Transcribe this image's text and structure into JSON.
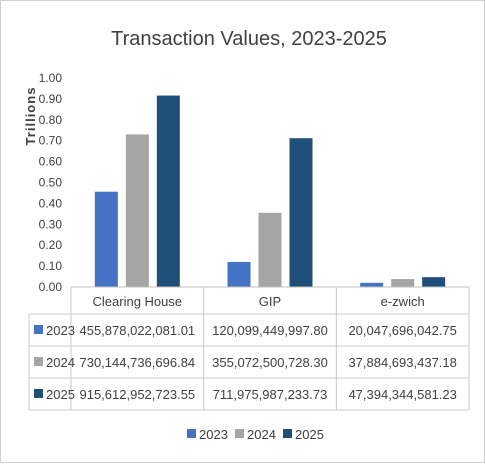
{
  "chart_data": {
    "type": "bar",
    "title": "Transaction Values, 2023-2025",
    "ylabel": "Trillions",
    "xlabel": "",
    "ylim": [
      0,
      1.0
    ],
    "y_ticks": [
      "1.00",
      "0.90",
      "0.80",
      "0.70",
      "0.60",
      "0.50",
      "0.40",
      "0.30",
      "0.20",
      "0.10",
      "0.00"
    ],
    "categories": [
      "Clearing House",
      "GIP",
      "e-zwich"
    ],
    "series": [
      {
        "name": "2023",
        "color": "#4472c4",
        "values": [
          0.456,
          0.12,
          0.02
        ],
        "labels": [
          "455,878,022,081.01",
          "120,099,449,997.80",
          "20,047,696,042.75"
        ]
      },
      {
        "name": "2024",
        "color": "#a5a5a5",
        "values": [
          0.73,
          0.355,
          0.038
        ],
        "labels": [
          "730,144,736,696.84",
          "355,072,500,728.30",
          "37,884,693,437.18"
        ]
      },
      {
        "name": "2025",
        "color": "#1f4e79",
        "values": [
          0.916,
          0.712,
          0.047
        ],
        "labels": [
          "915,612,952,723.55",
          "711,975,987,233.73",
          "47,394,344,581.23"
        ]
      }
    ],
    "legend": "bottom",
    "grid": false,
    "data_table": true
  }
}
